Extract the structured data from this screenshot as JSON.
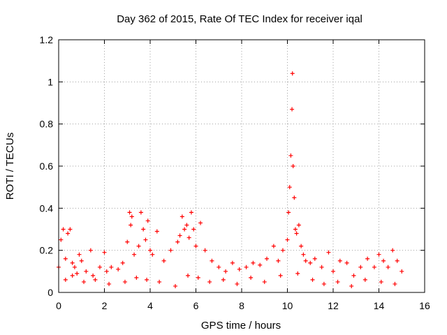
{
  "chart_data": {
    "type": "scatter",
    "title": "Day 362 of 2015, Rate Of TEC Index for receiver iqal",
    "xlabel": "GPS time / hours",
    "ylabel": "ROTI / TECUs",
    "xlim": [
      0,
      16
    ],
    "ylim": [
      0,
      1.2
    ],
    "xticks": [
      0,
      2,
      4,
      6,
      8,
      10,
      12,
      14,
      16
    ],
    "xtick_labels": [
      "0",
      "2",
      "4",
      "6",
      "8",
      "10",
      "12",
      "14",
      "16"
    ],
    "yticks": [
      0,
      0.2,
      0.4,
      0.6,
      0.8,
      1.0,
      1.2
    ],
    "ytick_labels": [
      "0",
      "0.2",
      "0.4",
      "0.6",
      "0.8",
      "1",
      "1.2"
    ],
    "grid": true,
    "marker": "+",
    "color": "#ff0000",
    "series": [
      {
        "name": "ROTI",
        "x": [
          0.0,
          0.1,
          0.2,
          0.3,
          0.4,
          0.5,
          0.6,
          0.7,
          0.8,
          0.9,
          1.0,
          1.2,
          1.4,
          1.5,
          1.8,
          2.0,
          2.1,
          2.3,
          2.6,
          2.8,
          3.0,
          3.1,
          3.15,
          3.2,
          3.3,
          3.5,
          3.6,
          3.7,
          3.8,
          3.9,
          4.0,
          4.1,
          4.3,
          4.6,
          4.9,
          5.2,
          5.3,
          5.4,
          5.5,
          5.6,
          5.7,
          5.8,
          5.9,
          6.0,
          6.2,
          6.4,
          6.7,
          7.0,
          7.3,
          7.6,
          7.9,
          8.2,
          8.5,
          8.8,
          9.1,
          9.4,
          9.6,
          9.8,
          10.0,
          10.05,
          10.1,
          10.15,
          10.2,
          10.22,
          10.25,
          10.3,
          10.35,
          10.4,
          10.5,
          10.6,
          10.7,
          10.8,
          11.0,
          11.2,
          11.5,
          11.8,
          12.0,
          12.3,
          12.6,
          12.9,
          13.2,
          13.5,
          13.8,
          14.0,
          14.2,
          14.4,
          14.6,
          14.8,
          15.0,
          0.3,
          0.6,
          1.1,
          1.6,
          2.2,
          2.9,
          3.4,
          3.85,
          4.4,
          5.1,
          5.65,
          6.1,
          6.6,
          7.2,
          7.8,
          8.4,
          9.0,
          9.7,
          10.45,
          11.1,
          11.6,
          12.2,
          12.8,
          13.4,
          14.1,
          14.7
        ],
        "y": [
          0.12,
          0.25,
          0.3,
          0.16,
          0.28,
          0.3,
          0.14,
          0.12,
          0.09,
          0.18,
          0.15,
          0.1,
          0.2,
          0.08,
          0.12,
          0.19,
          0.1,
          0.12,
          0.11,
          0.14,
          0.24,
          0.38,
          0.32,
          0.36,
          0.18,
          0.22,
          0.38,
          0.3,
          0.25,
          0.34,
          0.2,
          0.18,
          0.29,
          0.15,
          0.2,
          0.24,
          0.27,
          0.36,
          0.3,
          0.32,
          0.26,
          0.38,
          0.3,
          0.22,
          0.33,
          0.2,
          0.15,
          0.12,
          0.1,
          0.14,
          0.11,
          0.12,
          0.14,
          0.13,
          0.16,
          0.22,
          0.15,
          0.2,
          0.25,
          0.38,
          0.5,
          0.65,
          0.87,
          1.04,
          0.6,
          0.45,
          0.3,
          0.28,
          0.32,
          0.22,
          0.18,
          0.15,
          0.14,
          0.16,
          0.12,
          0.19,
          0.1,
          0.15,
          0.14,
          0.08,
          0.12,
          0.16,
          0.12,
          0.18,
          0.15,
          0.12,
          0.2,
          0.15,
          0.1,
          0.06,
          0.08,
          0.05,
          0.06,
          0.04,
          0.05,
          0.07,
          0.06,
          0.05,
          0.03,
          0.08,
          0.07,
          0.05,
          0.06,
          0.04,
          0.07,
          0.05,
          0.08,
          0.09,
          0.06,
          0.04,
          0.05,
          0.03,
          0.06,
          0.05,
          0.04
        ]
      }
    ]
  }
}
